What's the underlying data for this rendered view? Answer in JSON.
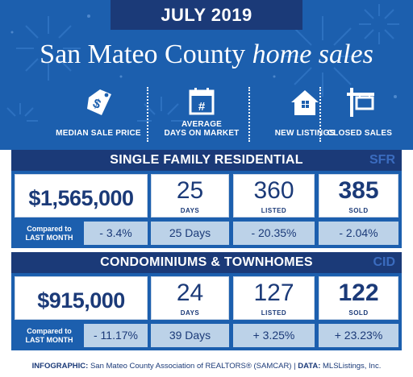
{
  "header": {
    "month": "JULY 2019",
    "title_plain": "San Mateo County ",
    "title_italic": "home sales"
  },
  "metrics": [
    {
      "icon": "price-tag-dollar-icon",
      "label": "MEDIAN SALE PRICE"
    },
    {
      "icon": "calendar-icon",
      "label_line1": "AVERAGE",
      "label_line2": "DAYS ON MARKET"
    },
    {
      "icon": "house-icon",
      "label": "NEW LISTINGS"
    },
    {
      "icon": "sold-sign-icon",
      "label": "CLOSED SALES"
    }
  ],
  "sfr": {
    "title": "SINGLE FAMILY RESIDENTIAL",
    "abbr": "SFR",
    "median_price": "$1,565,000",
    "days": "25",
    "days_unit": "DAYS",
    "listed": "360",
    "listed_unit": "LISTED",
    "sold": "385",
    "sold_unit": "SOLD",
    "compare_label_line1": "Compared to",
    "compare_label_line2": "LAST MONTH",
    "compare_price": "- 3.4%",
    "compare_days": "25 Days",
    "compare_listed": "- 20.35%",
    "compare_sold": "- 2.04%"
  },
  "cid": {
    "title": "CONDOMINIUMS & TOWNHOMES",
    "abbr": "CID",
    "median_price": "$915,000",
    "days": "24",
    "days_unit": "DAYS",
    "listed": "127",
    "listed_unit": "LISTED",
    "sold": "122",
    "sold_unit": "SOLD",
    "compare_label_line1": "Compared to",
    "compare_label_line2": "LAST MONTH",
    "compare_price": "- 11.17%",
    "compare_days": "39 Days",
    "compare_listed": "+ 3.25%",
    "compare_sold": "+ 23.23%"
  },
  "footer": {
    "infographic_label": "INFOGRAPHIC:",
    "infographic_text": " San Mateo County Association of REALTORS® (SAMCAR) | ",
    "data_label": "DATA:",
    "data_text": " MLSListings, Inc."
  },
  "colors": {
    "hero_blue": "#1c5fae",
    "navy": "#1b3a78",
    "light_blue": "#bcd2e8",
    "abbr_blue": "#3b6cbf"
  }
}
